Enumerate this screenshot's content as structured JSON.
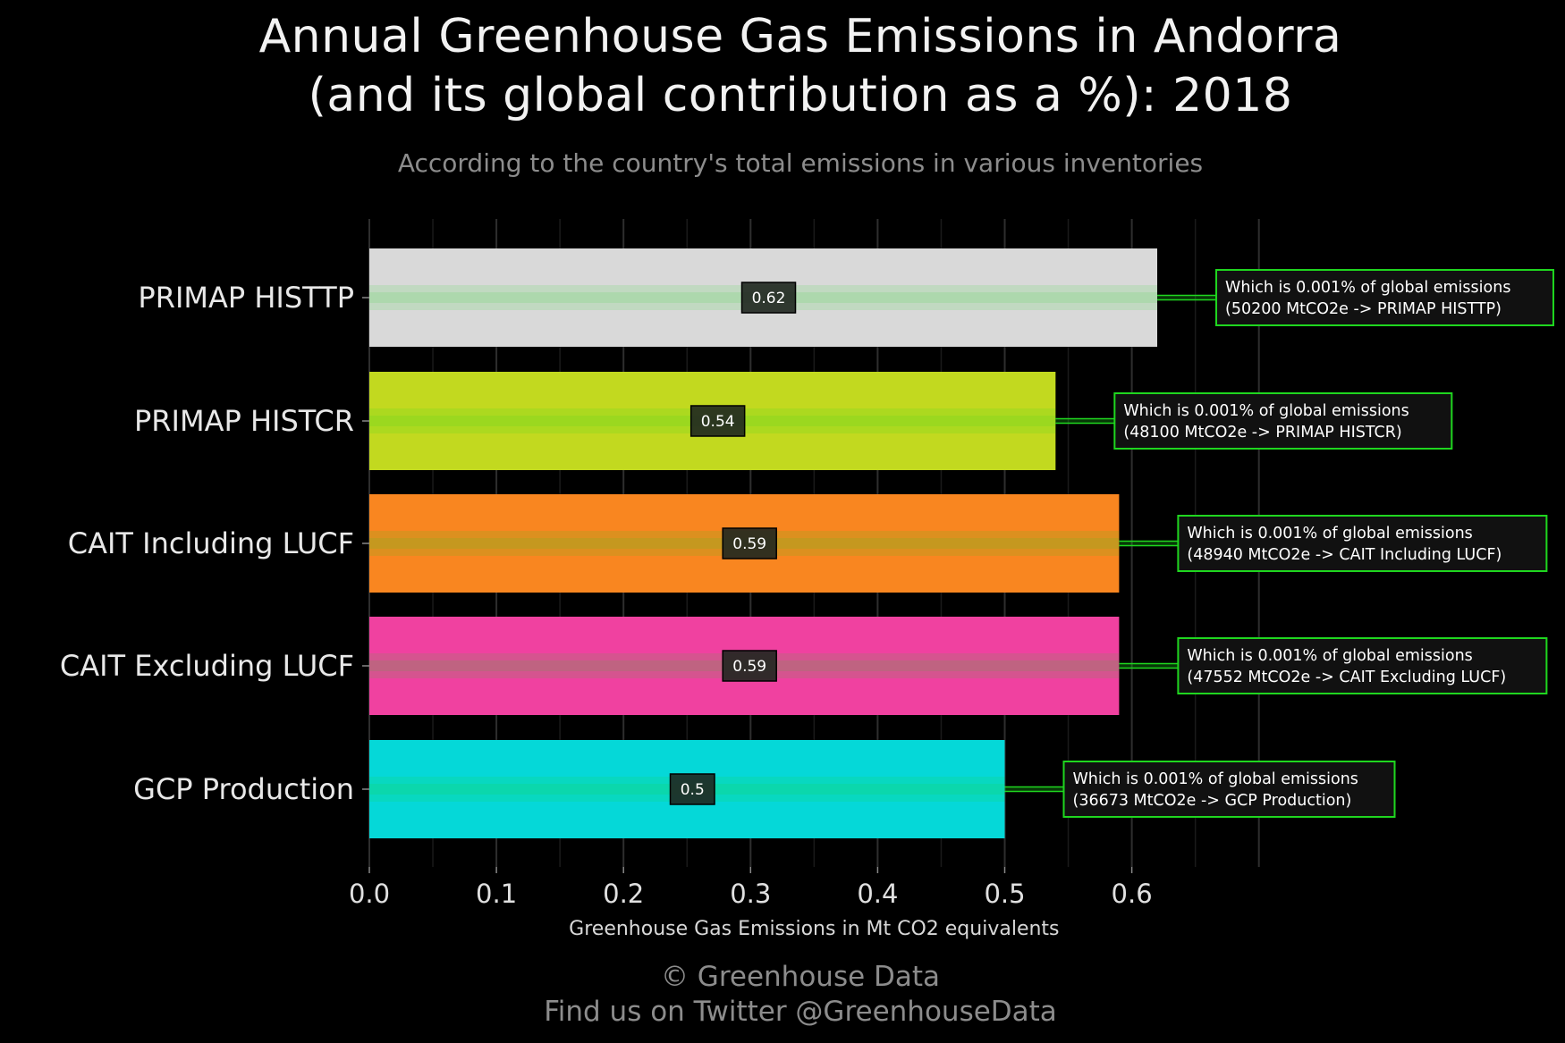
{
  "title_line1": "Annual Greenhouse Gas Emissions in Andorra",
  "title_line2": "(and its global contribution as a %): 2018",
  "subtitle": "According to the country's total emissions in various inventories",
  "footer_line1": "© Greenhouse Data",
  "footer_line2": "Find us on Twitter @GreenhouseData",
  "colors": {
    "background": "#000000",
    "annotation_border": "#1fd61f",
    "annotation_fill": "#111111",
    "value_box_fill": "#1f261f"
  },
  "chart_data": {
    "type": "bar",
    "orientation": "horizontal",
    "categories": [
      "PRIMAP HISTTP",
      "PRIMAP HISTCR",
      "CAIT Including LUCF",
      "CAIT Excluding LUCF",
      "GCP Production"
    ],
    "values": [
      0.62,
      0.54,
      0.59,
      0.59,
      0.5
    ],
    "value_labels": [
      "0.62",
      "0.54",
      "0.59",
      "0.59",
      "0.5"
    ],
    "bar_colors": [
      "#d9d9d9",
      "#c2d91f",
      "#f98620",
      "#f041a0",
      "#05d8d8"
    ],
    "annotations": [
      [
        "Which is 0.001% of global emissions",
        "(50200 MtCO2e -> PRIMAP HISTTP)"
      ],
      [
        "Which is 0.001% of global emissions",
        "(48100 MtCO2e -> PRIMAP HISTCR)"
      ],
      [
        "Which is 0.001% of global emissions",
        "(48940 MtCO2e -> CAIT Including LUCF)"
      ],
      [
        "Which is 0.001% of global emissions",
        "(47552 MtCO2e -> CAIT Excluding LUCF)"
      ],
      [
        "Which is 0.001% of global emissions",
        "(36673 MtCO2e -> GCP Production)"
      ]
    ],
    "xlabel": "Greenhouse Gas Emissions in Mt CO2 equivalents",
    "ylabel": "",
    "xlim": [
      0,
      0.7
    ],
    "xticks": [
      0.0,
      0.1,
      0.2,
      0.3,
      0.4,
      0.5,
      0.6
    ],
    "xtick_labels": [
      "0.0",
      "0.1",
      "0.2",
      "0.3",
      "0.4",
      "0.5",
      "0.6"
    ],
    "grid": true
  }
}
